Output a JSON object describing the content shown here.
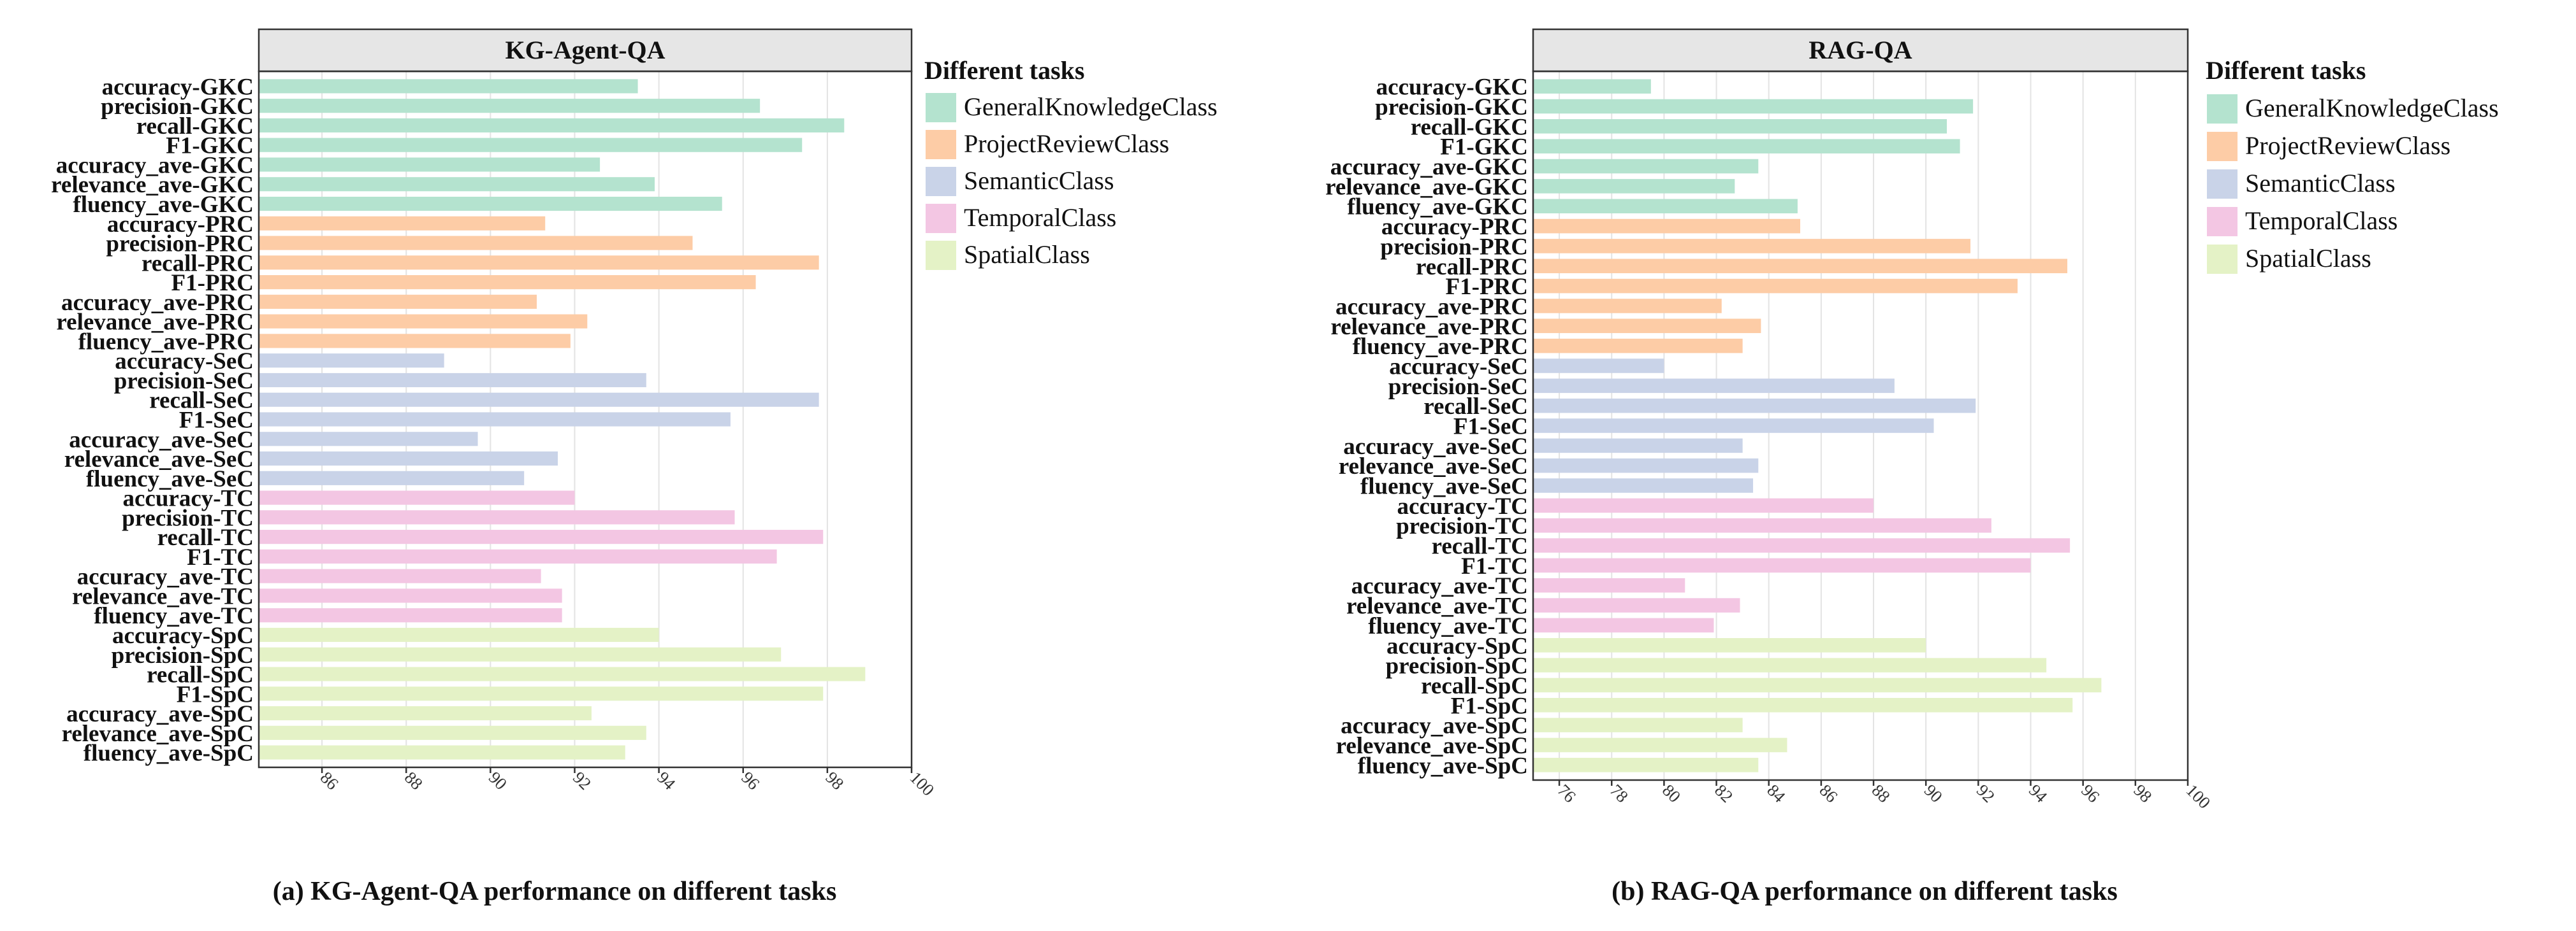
{
  "colors": {
    "GeneralKnowledgeClass": "#b4e3cf",
    "ProjectReviewClass": "#fdcca6",
    "SemanticClass": "#c9d3e8",
    "TemporalClass": "#f3c6e3",
    "SpatialClass": "#e4f2c6",
    "panel_header": "#e6e6e6",
    "grid": "#e3e3e3",
    "axis": "#333333"
  },
  "legend": {
    "title": "Different tasks",
    "entries": [
      "GeneralKnowledgeClass",
      "ProjectReviewClass",
      "SemanticClass",
      "TemporalClass",
      "SpatialClass"
    ]
  },
  "chart_data": [
    {
      "type": "bar",
      "orientation": "horizontal",
      "title": "KG-Agent-QA",
      "subtitle": "(a) KG-Agent-QA performance on different tasks",
      "xlabel": "",
      "ylabel": "",
      "xlim": [
        84.5,
        100
      ],
      "xticks": [
        86,
        88,
        90,
        92,
        94,
        96,
        98,
        100
      ],
      "grid": true,
      "legend_position": "right",
      "categories": [
        "accuracy-GKC",
        "precision-GKC",
        "recall-GKC",
        "F1-GKC",
        "accuracy_ave-GKC",
        "relevance_ave-GKC",
        "fluency_ave-GKC",
        "accuracy-PRC",
        "precision-PRC",
        "recall-PRC",
        "F1-PRC",
        "accuracy_ave-PRC",
        "relevance_ave-PRC",
        "fluency_ave-PRC",
        "accuracy-SeC",
        "precision-SeC",
        "recall-SeC",
        "F1-SeC",
        "accuracy_ave-SeC",
        "relevance_ave-SeC",
        "fluency_ave-SeC",
        "accuracy-TC",
        "precision-TC",
        "recall-TC",
        "F1-TC",
        "accuracy_ave-TC",
        "relevance_ave-TC",
        "fluency_ave-TC",
        "accuracy-SpC",
        "precision-SpC",
        "recall-SpC",
        "F1-SpC",
        "accuracy_ave-SpC",
        "relevance_ave-SpC",
        "fluency_ave-SpC"
      ],
      "groups": [
        "GeneralKnowledgeClass",
        "GeneralKnowledgeClass",
        "GeneralKnowledgeClass",
        "GeneralKnowledgeClass",
        "GeneralKnowledgeClass",
        "GeneralKnowledgeClass",
        "GeneralKnowledgeClass",
        "ProjectReviewClass",
        "ProjectReviewClass",
        "ProjectReviewClass",
        "ProjectReviewClass",
        "ProjectReviewClass",
        "ProjectReviewClass",
        "ProjectReviewClass",
        "SemanticClass",
        "SemanticClass",
        "SemanticClass",
        "SemanticClass",
        "SemanticClass",
        "SemanticClass",
        "SemanticClass",
        "TemporalClass",
        "TemporalClass",
        "TemporalClass",
        "TemporalClass",
        "TemporalClass",
        "TemporalClass",
        "TemporalClass",
        "SpatialClass",
        "SpatialClass",
        "SpatialClass",
        "SpatialClass",
        "SpatialClass",
        "SpatialClass",
        "SpatialClass"
      ],
      "values": [
        93.5,
        96.4,
        98.4,
        97.4,
        92.6,
        93.9,
        95.5,
        91.3,
        94.8,
        97.8,
        96.3,
        91.1,
        92.3,
        91.9,
        88.9,
        93.7,
        97.8,
        95.7,
        89.7,
        91.6,
        90.8,
        92.0,
        95.8,
        97.9,
        96.8,
        91.2,
        91.7,
        91.7,
        94.0,
        96.9,
        98.9,
        97.9,
        92.4,
        93.7,
        93.2
      ]
    },
    {
      "type": "bar",
      "orientation": "horizontal",
      "title": "RAG-QA",
      "subtitle": "(b) RAG-QA performance on different tasks",
      "xlabel": "",
      "ylabel": "",
      "xlim": [
        75,
        100
      ],
      "xticks": [
        76,
        78,
        80,
        82,
        84,
        86,
        88,
        90,
        92,
        94,
        96,
        98,
        100
      ],
      "grid": true,
      "legend_position": "right",
      "categories": [
        "accuracy-GKC",
        "precision-GKC",
        "recall-GKC",
        "F1-GKC",
        "accuracy_ave-GKC",
        "relevance_ave-GKC",
        "fluency_ave-GKC",
        "accuracy-PRC",
        "precision-PRC",
        "recall-PRC",
        "F1-PRC",
        "accuracy_ave-PRC",
        "relevance_ave-PRC",
        "fluency_ave-PRC",
        "accuracy-SeC",
        "precision-SeC",
        "recall-SeC",
        "F1-SeC",
        "accuracy_ave-SeC",
        "relevance_ave-SeC",
        "fluency_ave-SeC",
        "accuracy-TC",
        "precision-TC",
        "recall-TC",
        "F1-TC",
        "accuracy_ave-TC",
        "relevance_ave-TC",
        "fluency_ave-TC",
        "accuracy-SpC",
        "precision-SpC",
        "recall-SpC",
        "F1-SpC",
        "accuracy_ave-SpC",
        "relevance_ave-SpC",
        "fluency_ave-SpC"
      ],
      "groups": [
        "GeneralKnowledgeClass",
        "GeneralKnowledgeClass",
        "GeneralKnowledgeClass",
        "GeneralKnowledgeClass",
        "GeneralKnowledgeClass",
        "GeneralKnowledgeClass",
        "GeneralKnowledgeClass",
        "ProjectReviewClass",
        "ProjectReviewClass",
        "ProjectReviewClass",
        "ProjectReviewClass",
        "ProjectReviewClass",
        "ProjectReviewClass",
        "ProjectReviewClass",
        "SemanticClass",
        "SemanticClass",
        "SemanticClass",
        "SemanticClass",
        "SemanticClass",
        "SemanticClass",
        "SemanticClass",
        "TemporalClass",
        "TemporalClass",
        "TemporalClass",
        "TemporalClass",
        "TemporalClass",
        "TemporalClass",
        "TemporalClass",
        "SpatialClass",
        "SpatialClass",
        "SpatialClass",
        "SpatialClass",
        "SpatialClass",
        "SpatialClass",
        "SpatialClass"
      ],
      "values": [
        79.5,
        91.8,
        90.8,
        91.3,
        83.6,
        82.7,
        85.1,
        85.2,
        91.7,
        95.4,
        93.5,
        82.2,
        83.7,
        83.0,
        80.0,
        88.8,
        91.9,
        90.3,
        83.0,
        83.6,
        83.4,
        88.0,
        92.5,
        95.5,
        94.0,
        80.8,
        82.9,
        81.9,
        90.0,
        94.6,
        96.7,
        95.6,
        83.0,
        84.7,
        83.6
      ]
    }
  ]
}
